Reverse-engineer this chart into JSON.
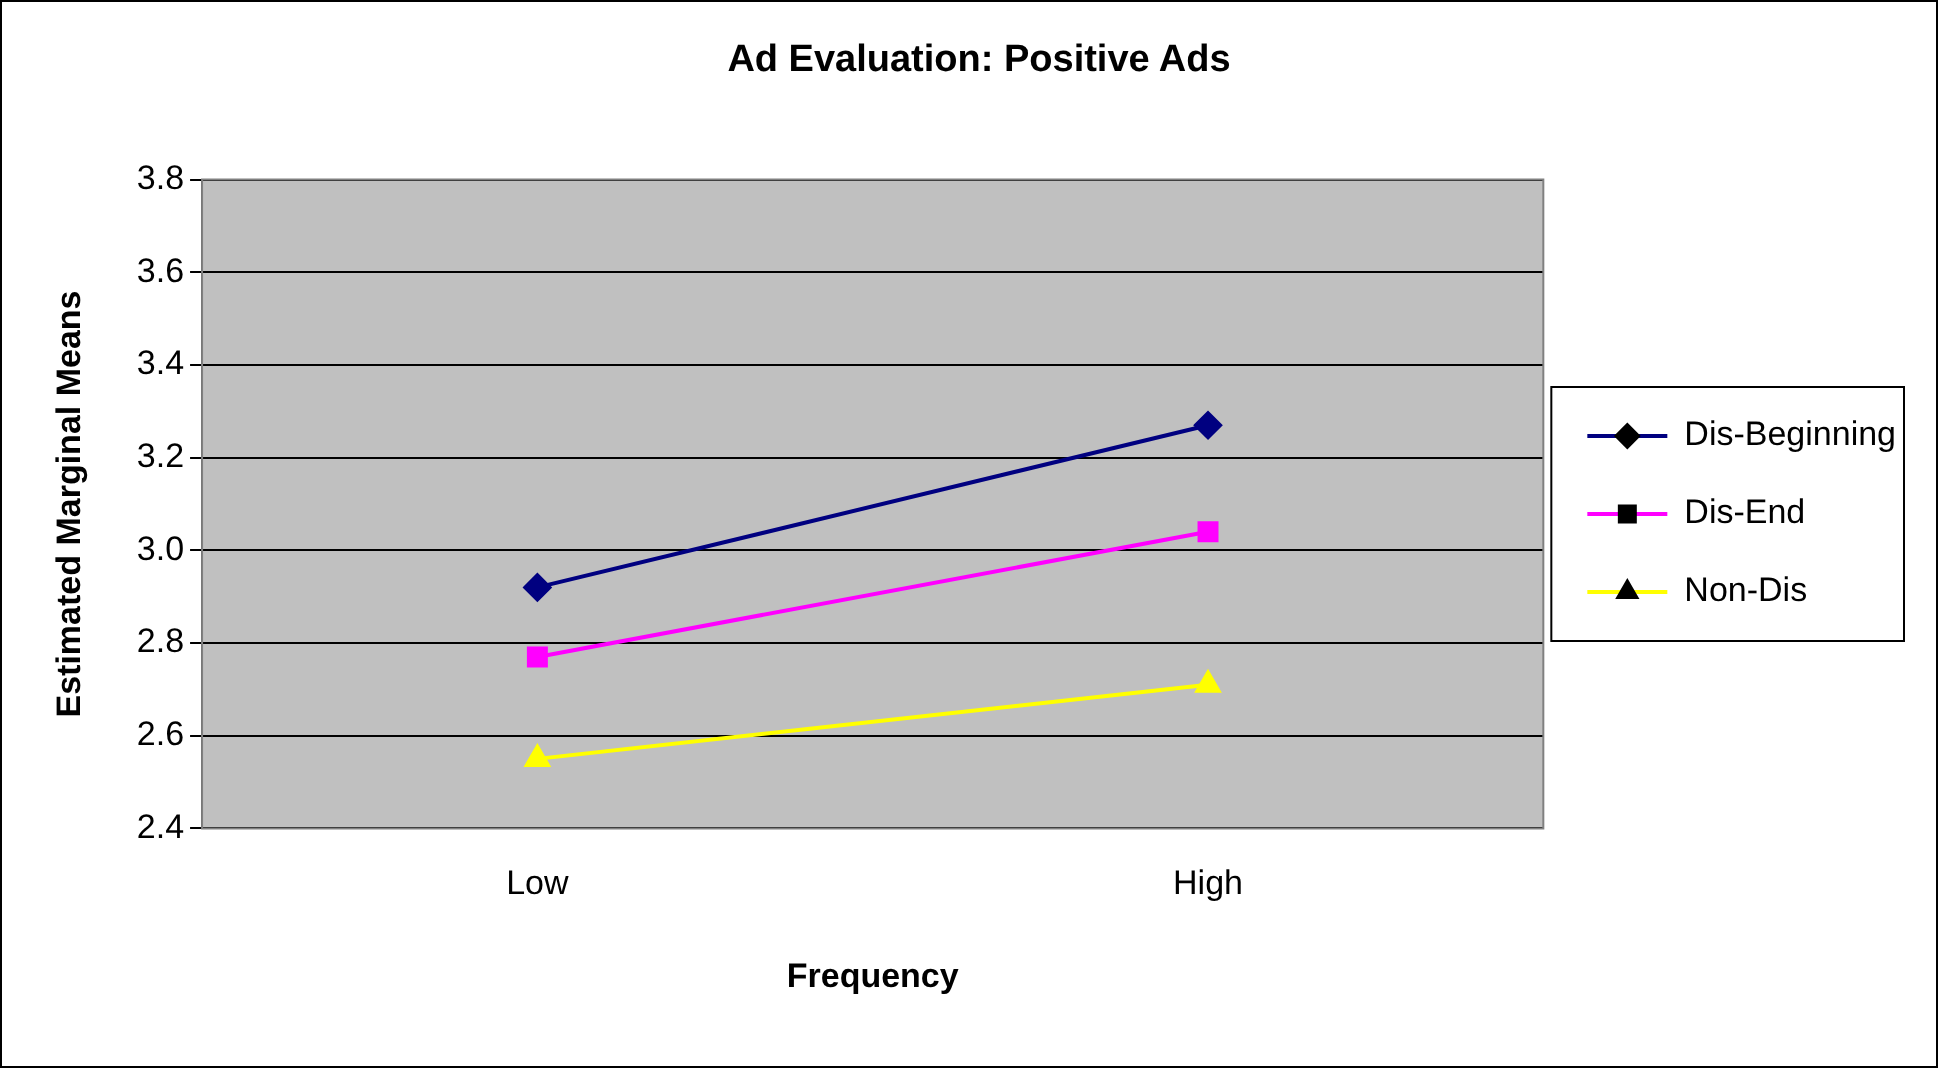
{
  "chart_data": {
    "type": "line",
    "title": "Ad Evaluation: Positive Ads",
    "xlabel": "Frequency",
    "ylabel": "Estimated Marginal Means",
    "categories": [
      "Low",
      "High"
    ],
    "series": [
      {
        "name": "Dis-Beginning",
        "color": "#000080",
        "marker": "diamond",
        "values": [
          2.92,
          3.27
        ]
      },
      {
        "name": "Dis-End",
        "color": "#ff00ff",
        "marker": "square",
        "values": [
          2.77,
          3.04
        ]
      },
      {
        "name": "Non-Dis",
        "color": "#ffff00",
        "marker": "triangle",
        "values": [
          2.55,
          2.71
        ]
      }
    ],
    "ylim": [
      2.4,
      3.8
    ],
    "yticks": [
      {
        "value": 2.4,
        "label": "2.4"
      },
      {
        "value": 2.6,
        "label": "2.6"
      },
      {
        "value": 2.8,
        "label": "2.8"
      },
      {
        "value": 3.0,
        "label": "3.0"
      },
      {
        "value": 3.2,
        "label": "3.2"
      },
      {
        "value": 3.4,
        "label": "3.4"
      },
      {
        "value": 3.6,
        "label": "3.6"
      },
      {
        "value": 3.8,
        "label": "3.8"
      }
    ],
    "grid": "y",
    "legend": "right"
  }
}
